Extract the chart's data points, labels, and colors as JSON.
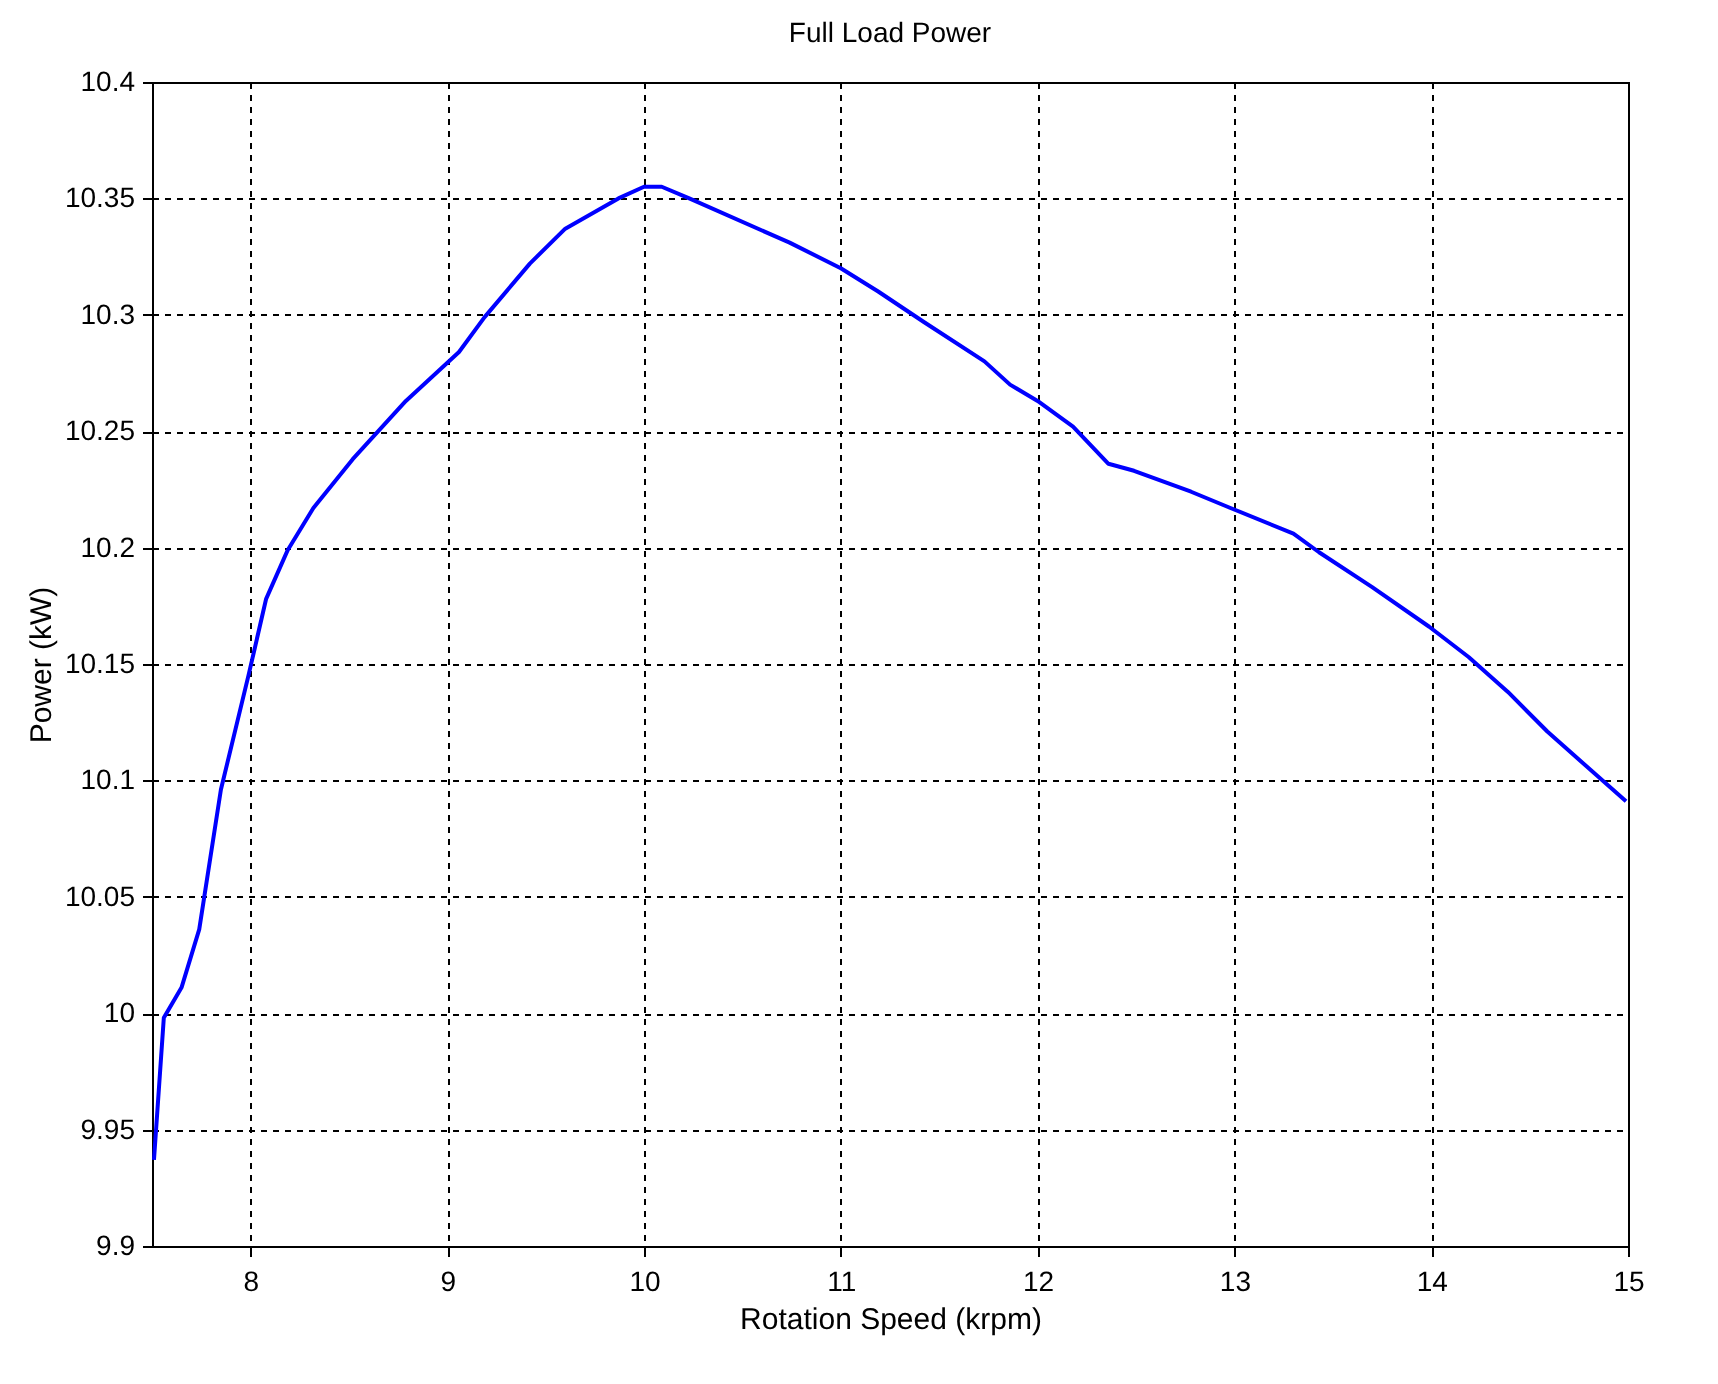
{
  "chart_data": {
    "type": "line",
    "title": "Full Load Power",
    "xlabel": "Rotation Speed (krpm)",
    "ylabel": "Power (kW)",
    "x": [
      7.51,
      7.56,
      7.65,
      7.74,
      7.85,
      7.99,
      8.08,
      8.19,
      8.32,
      8.52,
      8.79,
      9.06,
      9.19,
      9.42,
      9.6,
      9.87,
      10.0,
      10.09,
      10.23,
      10.74,
      11.0,
      11.19,
      11.42,
      11.73,
      11.86,
      12.0,
      12.18,
      12.36,
      12.49,
      12.78,
      12.98,
      13.3,
      13.43,
      13.7,
      13.99,
      14.19,
      14.39,
      14.59,
      14.99
    ],
    "series": [
      {
        "color": "#0000ff",
        "values": [
          9.937,
          9.998,
          10.011,
          10.036,
          10.096,
          10.145,
          10.178,
          10.199,
          10.217,
          10.238,
          10.263,
          10.284,
          10.299,
          10.322,
          10.337,
          10.35,
          10.355,
          10.355,
          10.35,
          10.331,
          10.32,
          10.31,
          10.297,
          10.28,
          10.27,
          10.263,
          10.252,
          10.236,
          10.233,
          10.224,
          10.217,
          10.206,
          10.198,
          10.183,
          10.166,
          10.153,
          10.138,
          10.121,
          10.091
        ]
      }
    ],
    "xlim": [
      7.5,
      15
    ],
    "xticks": [
      8,
      9,
      10,
      11,
      12,
      13,
      14,
      15
    ],
    "ylim": [
      9.9,
      10.4
    ],
    "yticks": [
      9.9,
      9.95,
      10,
      10.05,
      10.1,
      10.15,
      10.2,
      10.25,
      10.3,
      10.35,
      10.4
    ],
    "grid": true,
    "line_style": "solid",
    "marker": "none",
    "legend": false
  }
}
